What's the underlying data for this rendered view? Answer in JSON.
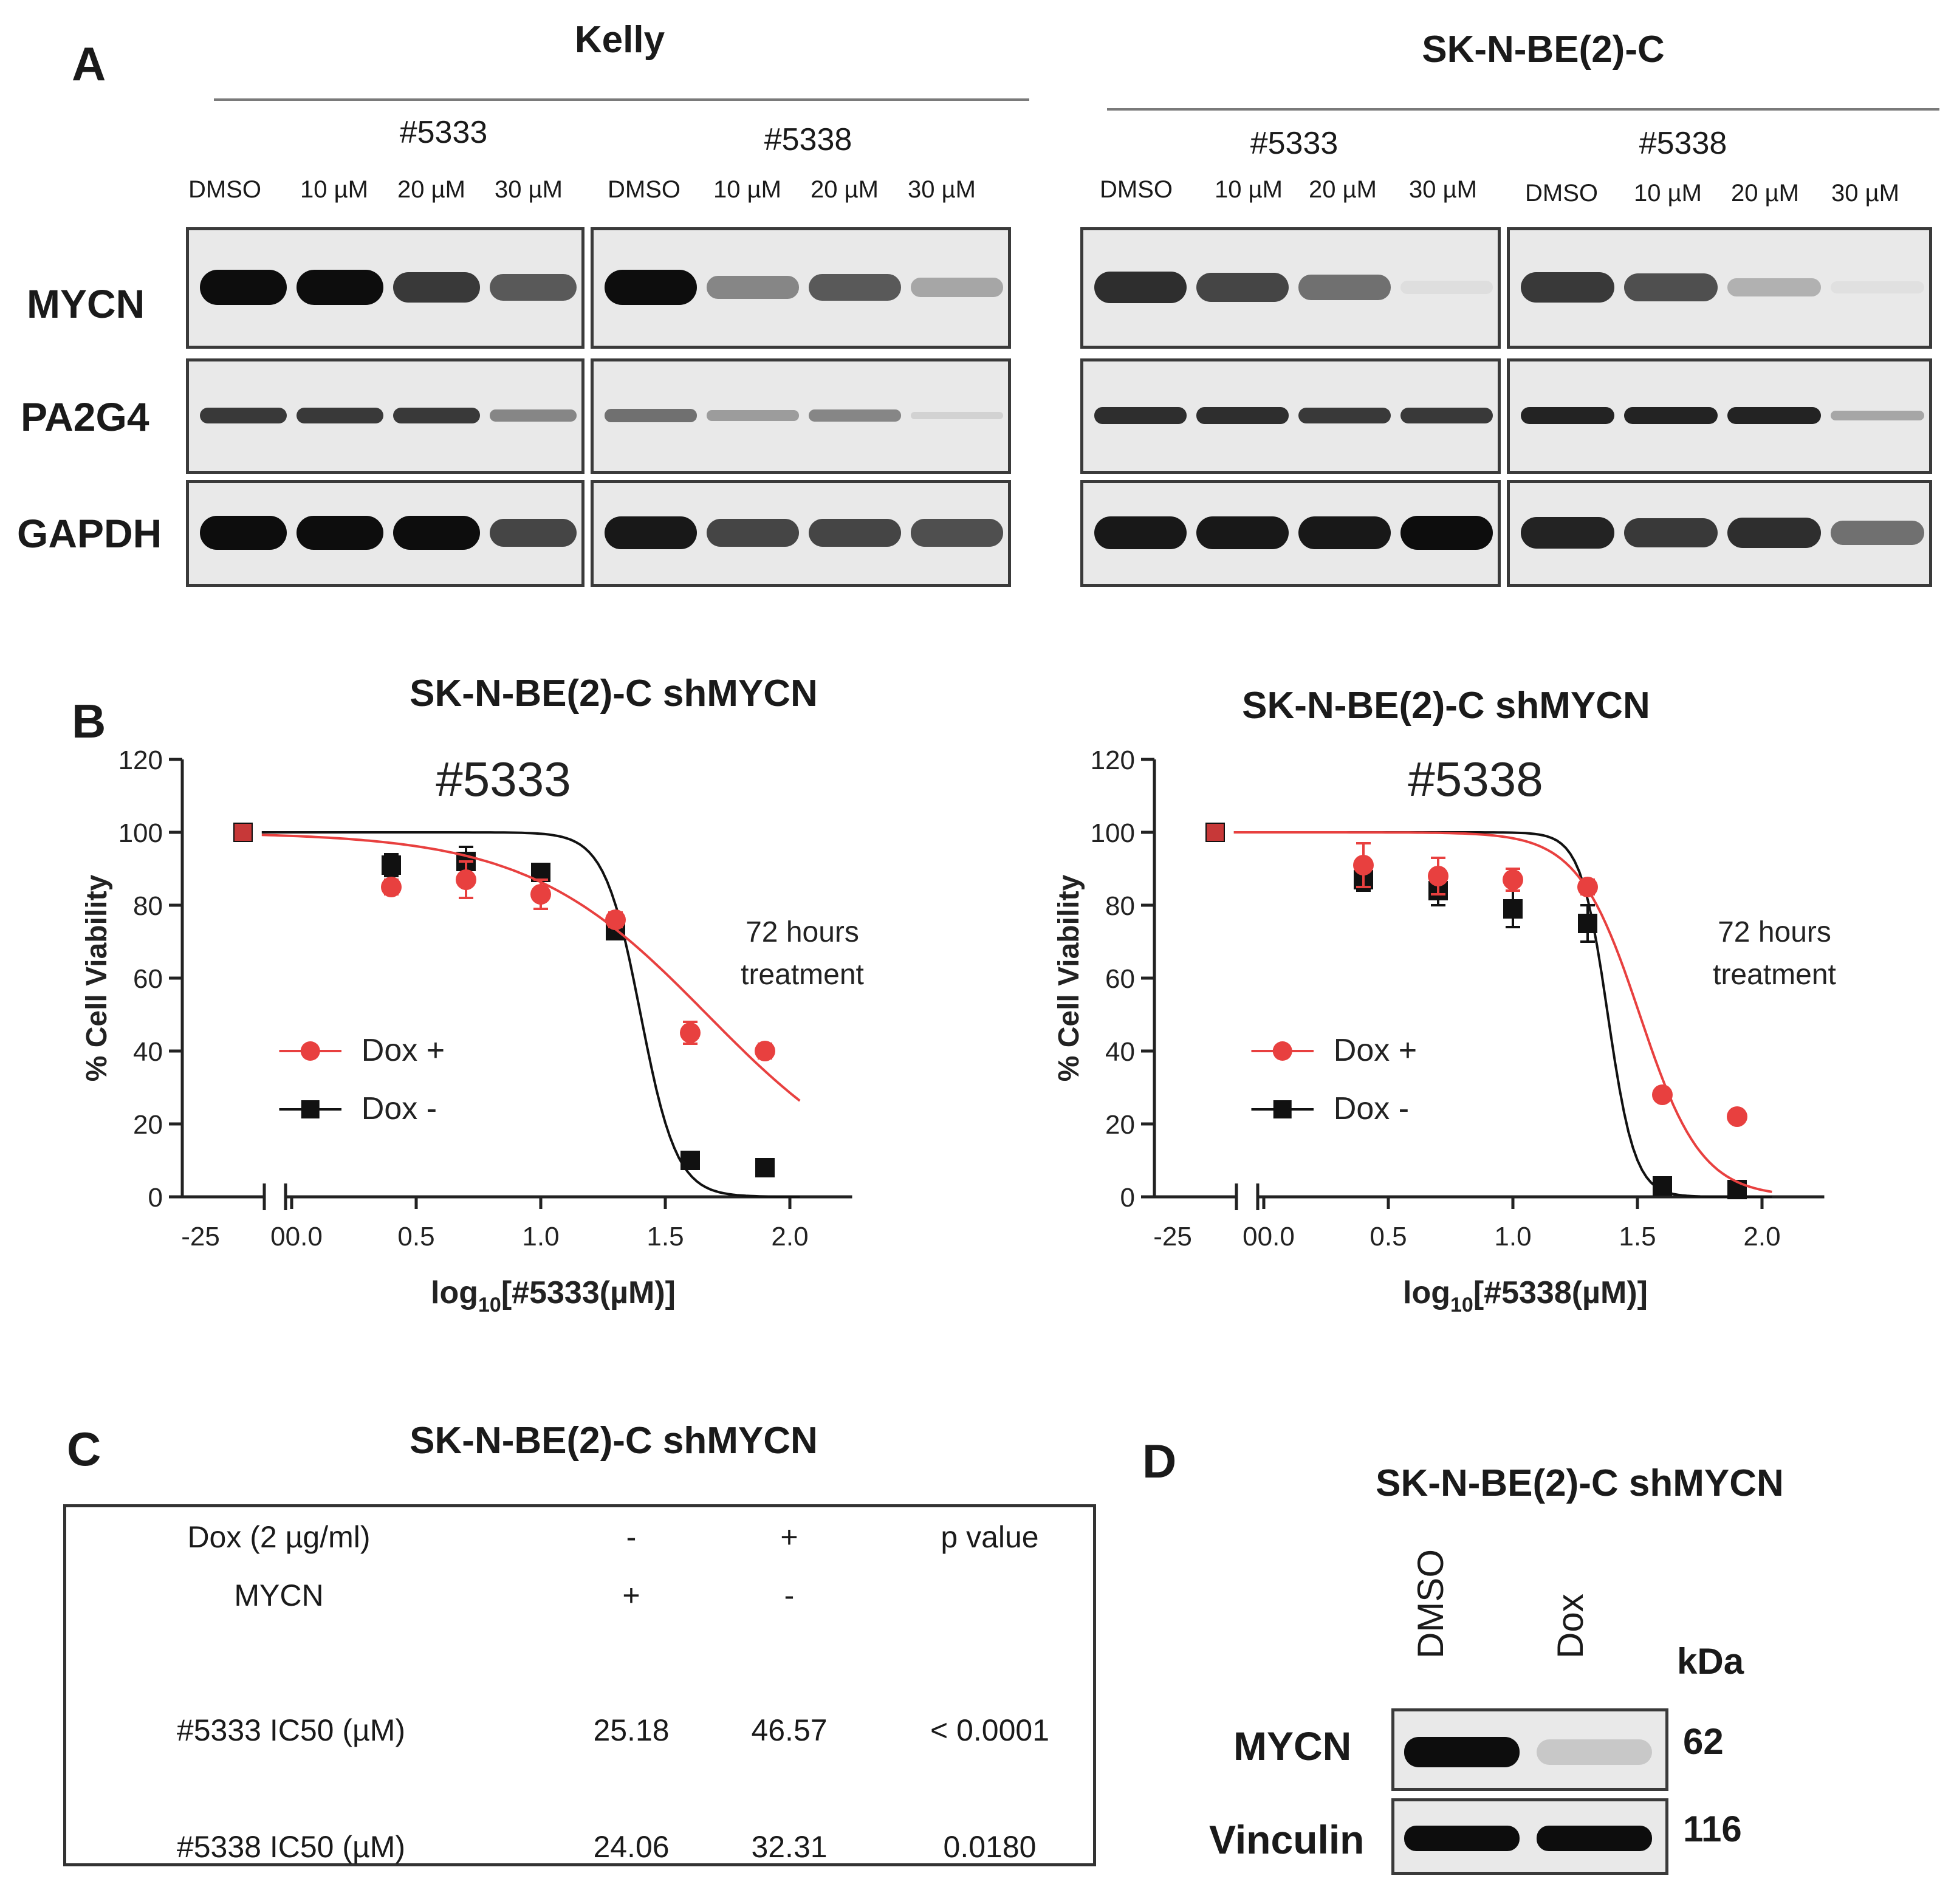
{
  "panel_a": {
    "letter": "A",
    "cell_lines": [
      "Kelly",
      "SK-N-BE(2)-C"
    ],
    "compounds": [
      "#5333",
      "#5338"
    ],
    "lanes": [
      "DMSO",
      "10 µM",
      "20 µM",
      "30 µM"
    ],
    "proteins": [
      "MYCN",
      "PA2G4",
      "GAPDH"
    ],
    "blots": [
      {
        "line": "Kelly",
        "compound": "#5333",
        "MYCN": [
          1.0,
          1.0,
          0.8,
          0.65
        ],
        "PA2G4": [
          0.8,
          0.8,
          0.8,
          0.45
        ],
        "GAPDH": [
          1.0,
          1.0,
          1.0,
          0.75
        ]
      },
      {
        "line": "Kelly",
        "compound": "#5338",
        "MYCN": [
          1.0,
          0.45,
          0.65,
          0.3
        ],
        "PA2G4": [
          0.55,
          0.35,
          0.45,
          0.1
        ],
        "GAPDH": [
          0.95,
          0.75,
          0.75,
          0.7
        ]
      },
      {
        "line": "SK-N-BE(2)-C",
        "compound": "#5333",
        "MYCN": [
          0.85,
          0.75,
          0.55,
          0.05
        ],
        "PA2G4": [
          0.85,
          0.85,
          0.8,
          0.8
        ],
        "GAPDH": [
          0.95,
          0.95,
          0.95,
          1.0
        ]
      },
      {
        "line": "SK-N-BE(2)-C",
        "compound": "#5338",
        "MYCN": [
          0.8,
          0.7,
          0.25,
          0.0
        ],
        "PA2G4": [
          0.9,
          0.9,
          0.9,
          0.3
        ],
        "GAPDH": [
          0.9,
          0.8,
          0.85,
          0.55
        ]
      }
    ]
  },
  "panel_b": {
    "letter": "B",
    "colors": {
      "dox_plus": "#e8403f",
      "dox_minus": "#111111"
    },
    "charts_meta": [
      {
        "title": "SK-N-BE(2)-C shMYCN",
        "compound": "#5333",
        "xlabel_pre": "log",
        "xlabel_sub": "10",
        "xlabel_post": "[#5333(µM)]",
        "ylabel": "% Cell Viability",
        "note1": "72 hours",
        "note2": "treatment"
      },
      {
        "title": "SK-N-BE(2)-C shMYCN",
        "compound": "#5338",
        "xlabel_pre": "log",
        "xlabel_sub": "10",
        "xlabel_post": "[#5338(µM)]",
        "ylabel": "% Cell Viability",
        "note1": "72 hours",
        "note2": "treatment"
      }
    ],
    "legend": [
      "Dox +",
      "Dox -"
    ],
    "x_ticks": [
      "-25",
      "00.0",
      "0.5",
      "1.0",
      "1.5",
      "2.0"
    ],
    "y_ticks": [
      "0",
      "20",
      "40",
      "60",
      "80",
      "100",
      "120"
    ]
  },
  "chart_data": [
    {
      "type": "scatter",
      "title": "SK-N-BE(2)-C shMYCN",
      "annotation": "#5333",
      "xlabel": "log10[#5333(µM)]",
      "ylabel": "% Cell Viability",
      "ylim": [
        0,
        120
      ],
      "xlim": [
        0,
        2.25
      ],
      "series": [
        {
          "name": "Dox +",
          "control": 100,
          "x": [
            0.4,
            0.7,
            1.0,
            1.3,
            1.6,
            1.9
          ],
          "y": [
            85,
            87,
            83,
            76,
            45,
            40
          ],
          "err": [
            2,
            5,
            4,
            2,
            3,
            2
          ],
          "fit_ic50": 1.668,
          "fit_hill": 1.2,
          "fit_top": 100
        },
        {
          "name": "Dox -",
          "control": 100,
          "x": [
            0.4,
            0.7,
            1.0,
            1.3,
            1.6,
            1.9
          ],
          "y": [
            91,
            92,
            89,
            73,
            10,
            8
          ],
          "err": [
            3,
            4,
            2,
            2,
            1,
            1
          ],
          "fit_ic50": 1.401,
          "fit_hill": 6,
          "fit_top": 100
        }
      ]
    },
    {
      "type": "scatter",
      "title": "SK-N-BE(2)-C shMYCN",
      "annotation": "#5338",
      "xlabel": "log10[#5338(µM)]",
      "ylabel": "% Cell Viability",
      "ylim": [
        0,
        120
      ],
      "xlim": [
        0,
        2.25
      ],
      "series": [
        {
          "name": "Dox +",
          "control": 100,
          "x": [
            0.4,
            0.7,
            1.0,
            1.3,
            1.6,
            1.9
          ],
          "y": [
            91,
            88,
            87,
            85,
            28,
            22
          ],
          "err": [
            6,
            5,
            3,
            2,
            1,
            1
          ],
          "fit_ic50": 1.509,
          "fit_hill": 3.5,
          "fit_top": 100
        },
        {
          "name": "Dox -",
          "control": 100,
          "x": [
            0.4,
            0.7,
            1.0,
            1.3,
            1.6,
            1.9
          ],
          "y": [
            87,
            84,
            79,
            75,
            3,
            2
          ],
          "err": [
            3,
            4,
            5,
            5,
            1,
            1
          ],
          "fit_ic50": 1.381,
          "fit_hill": 8,
          "fit_top": 100
        }
      ]
    },
    {
      "type": "table",
      "title": "SK-N-BE(2)-C shMYCN",
      "header_rows": [
        [
          "Dox (2 µg/ml)",
          "-",
          "+",
          "p value"
        ],
        [
          "MYCN",
          "+",
          "-",
          ""
        ]
      ],
      "rows": [
        [
          "#5333 IC50  (µM)",
          "25.18",
          "46.57",
          "< 0.0001"
        ],
        [
          "#5338 IC50  (µM)",
          "24.06",
          "32.31",
          "0.0180"
        ]
      ]
    }
  ],
  "panel_c": {
    "letter": "C",
    "title": "SK-N-BE(2)-C shMYCN"
  },
  "panel_d": {
    "letter": "D",
    "title": "SK-N-BE(2)-C shMYCN",
    "lanes": [
      "DMSO",
      "Dox"
    ],
    "proteins": [
      {
        "name": "MYCN",
        "kda": "62",
        "bands": [
          1.0,
          0.15
        ]
      },
      {
        "name": "Vinculin",
        "kda": "116",
        "bands": [
          1.0,
          1.0
        ]
      }
    ],
    "kda_label": "kDa"
  }
}
